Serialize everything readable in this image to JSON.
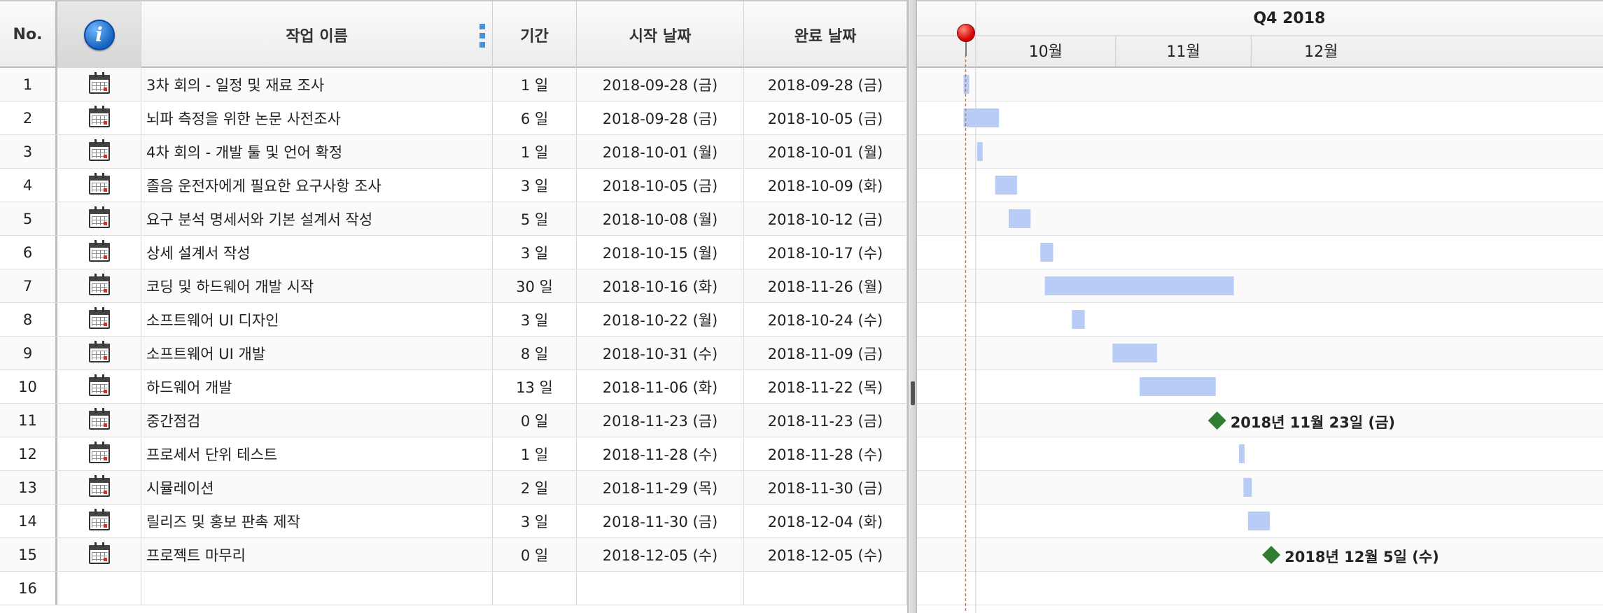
{
  "columns": {
    "no": "No.",
    "name": "작업 이름",
    "duration": "기간",
    "start": "시작 날짜",
    "end": "완료 날짜"
  },
  "icons": {
    "header_info": "info-icon",
    "task": "calendar-icon",
    "column_menu": "kebab-menu-icon",
    "today_marker": "red-pin-icon"
  },
  "tasks": [
    {
      "no": "1",
      "name": "3차 회의 - 일정 및 재료 조사",
      "duration": "1 일",
      "start": "2018-09-28 (금)",
      "end": "2018-09-28 (금)"
    },
    {
      "no": "2",
      "name": "뇌파 측정을 위한 논문 사전조사",
      "duration": "6 일",
      "start": "2018-09-28 (금)",
      "end": "2018-10-05 (금)"
    },
    {
      "no": "3",
      "name": "4차 회의 - 개발 툴 및 언어 확정",
      "duration": "1 일",
      "start": "2018-10-01 (월)",
      "end": "2018-10-01 (월)"
    },
    {
      "no": "4",
      "name": "졸음 운전자에게 필요한 요구사항 조사",
      "duration": "3 일",
      "start": "2018-10-05 (금)",
      "end": "2018-10-09 (화)"
    },
    {
      "no": "5",
      "name": "요구 분석 명세서와 기본 설계서 작성",
      "duration": "5 일",
      "start": "2018-10-08 (월)",
      "end": "2018-10-12 (금)"
    },
    {
      "no": "6",
      "name": "상세 설계서 작성",
      "duration": "3 일",
      "start": "2018-10-15 (월)",
      "end": "2018-10-17 (수)"
    },
    {
      "no": "7",
      "name": "코딩 및 하드웨어 개발 시작",
      "duration": "30 일",
      "start": "2018-10-16 (화)",
      "end": "2018-11-26 (월)"
    },
    {
      "no": "8",
      "name": "소프트웨어 UI 디자인",
      "duration": "3 일",
      "start": "2018-10-22 (월)",
      "end": "2018-10-24 (수)"
    },
    {
      "no": "9",
      "name": "소프트웨어 UI 개발",
      "duration": "8 일",
      "start": "2018-10-31 (수)",
      "end": "2018-11-09 (금)"
    },
    {
      "no": "10",
      "name": "하드웨어 개발",
      "duration": "13 일",
      "start": "2018-11-06 (화)",
      "end": "2018-11-22 (목)"
    },
    {
      "no": "11",
      "name": "중간점검",
      "duration": "0 일",
      "start": "2018-11-23 (금)",
      "end": "2018-11-23 (금)"
    },
    {
      "no": "12",
      "name": "프로세서 단위 테스트",
      "duration": "1 일",
      "start": "2018-11-28 (수)",
      "end": "2018-11-28 (수)"
    },
    {
      "no": "13",
      "name": "시뮬레이션",
      "duration": "2 일",
      "start": "2018-11-29 (목)",
      "end": "2018-11-30 (금)"
    },
    {
      "no": "14",
      "name": "릴리즈 및 홍보 판촉 제작",
      "duration": "3 일",
      "start": "2018-11-30 (금)",
      "end": "2018-12-04 (화)"
    },
    {
      "no": "15",
      "name": "프로젝트 마무리",
      "duration": "0 일",
      "start": "2018-12-05 (수)",
      "end": "2018-12-05 (수)"
    },
    {
      "no": "16",
      "name": "",
      "duration": "",
      "start": "",
      "end": ""
    }
  ],
  "gantt": {
    "quarter": "Q4 2018",
    "months": [
      "10월",
      "11월",
      "12월"
    ],
    "timeline_start": "2018-09-18",
    "quarter_start": "2018-10-01",
    "timeline_end": "2018-12-31",
    "today": "2018-09-28",
    "bar_color": "#b7cdf8",
    "milestone_color": "#2e7d32",
    "today_line_color": "#e0703a",
    "bars": [
      {
        "task": "1",
        "start": "2018-09-28",
        "end": "2018-09-28"
      },
      {
        "task": "2",
        "start": "2018-09-28",
        "end": "2018-10-05"
      },
      {
        "task": "3",
        "start": "2018-10-01",
        "end": "2018-10-01"
      },
      {
        "task": "4",
        "start": "2018-10-05",
        "end": "2018-10-09"
      },
      {
        "task": "5",
        "start": "2018-10-08",
        "end": "2018-10-12"
      },
      {
        "task": "6",
        "start": "2018-10-15",
        "end": "2018-10-17"
      },
      {
        "task": "7",
        "start": "2018-10-16",
        "end": "2018-11-26"
      },
      {
        "task": "8",
        "start": "2018-10-22",
        "end": "2018-10-24"
      },
      {
        "task": "9",
        "start": "2018-10-31",
        "end": "2018-11-09"
      },
      {
        "task": "10",
        "start": "2018-11-06",
        "end": "2018-11-22"
      },
      {
        "task": "12",
        "start": "2018-11-28",
        "end": "2018-11-28"
      },
      {
        "task": "13",
        "start": "2018-11-29",
        "end": "2018-11-30"
      },
      {
        "task": "14",
        "start": "2018-11-30",
        "end": "2018-12-04"
      }
    ],
    "milestones": [
      {
        "task": "11",
        "date": "2018-11-23",
        "label": "2018년 11월 23일 (금)"
      },
      {
        "task": "15",
        "date": "2018-12-05",
        "label": "2018년 12월 5일 (수)"
      }
    ]
  }
}
